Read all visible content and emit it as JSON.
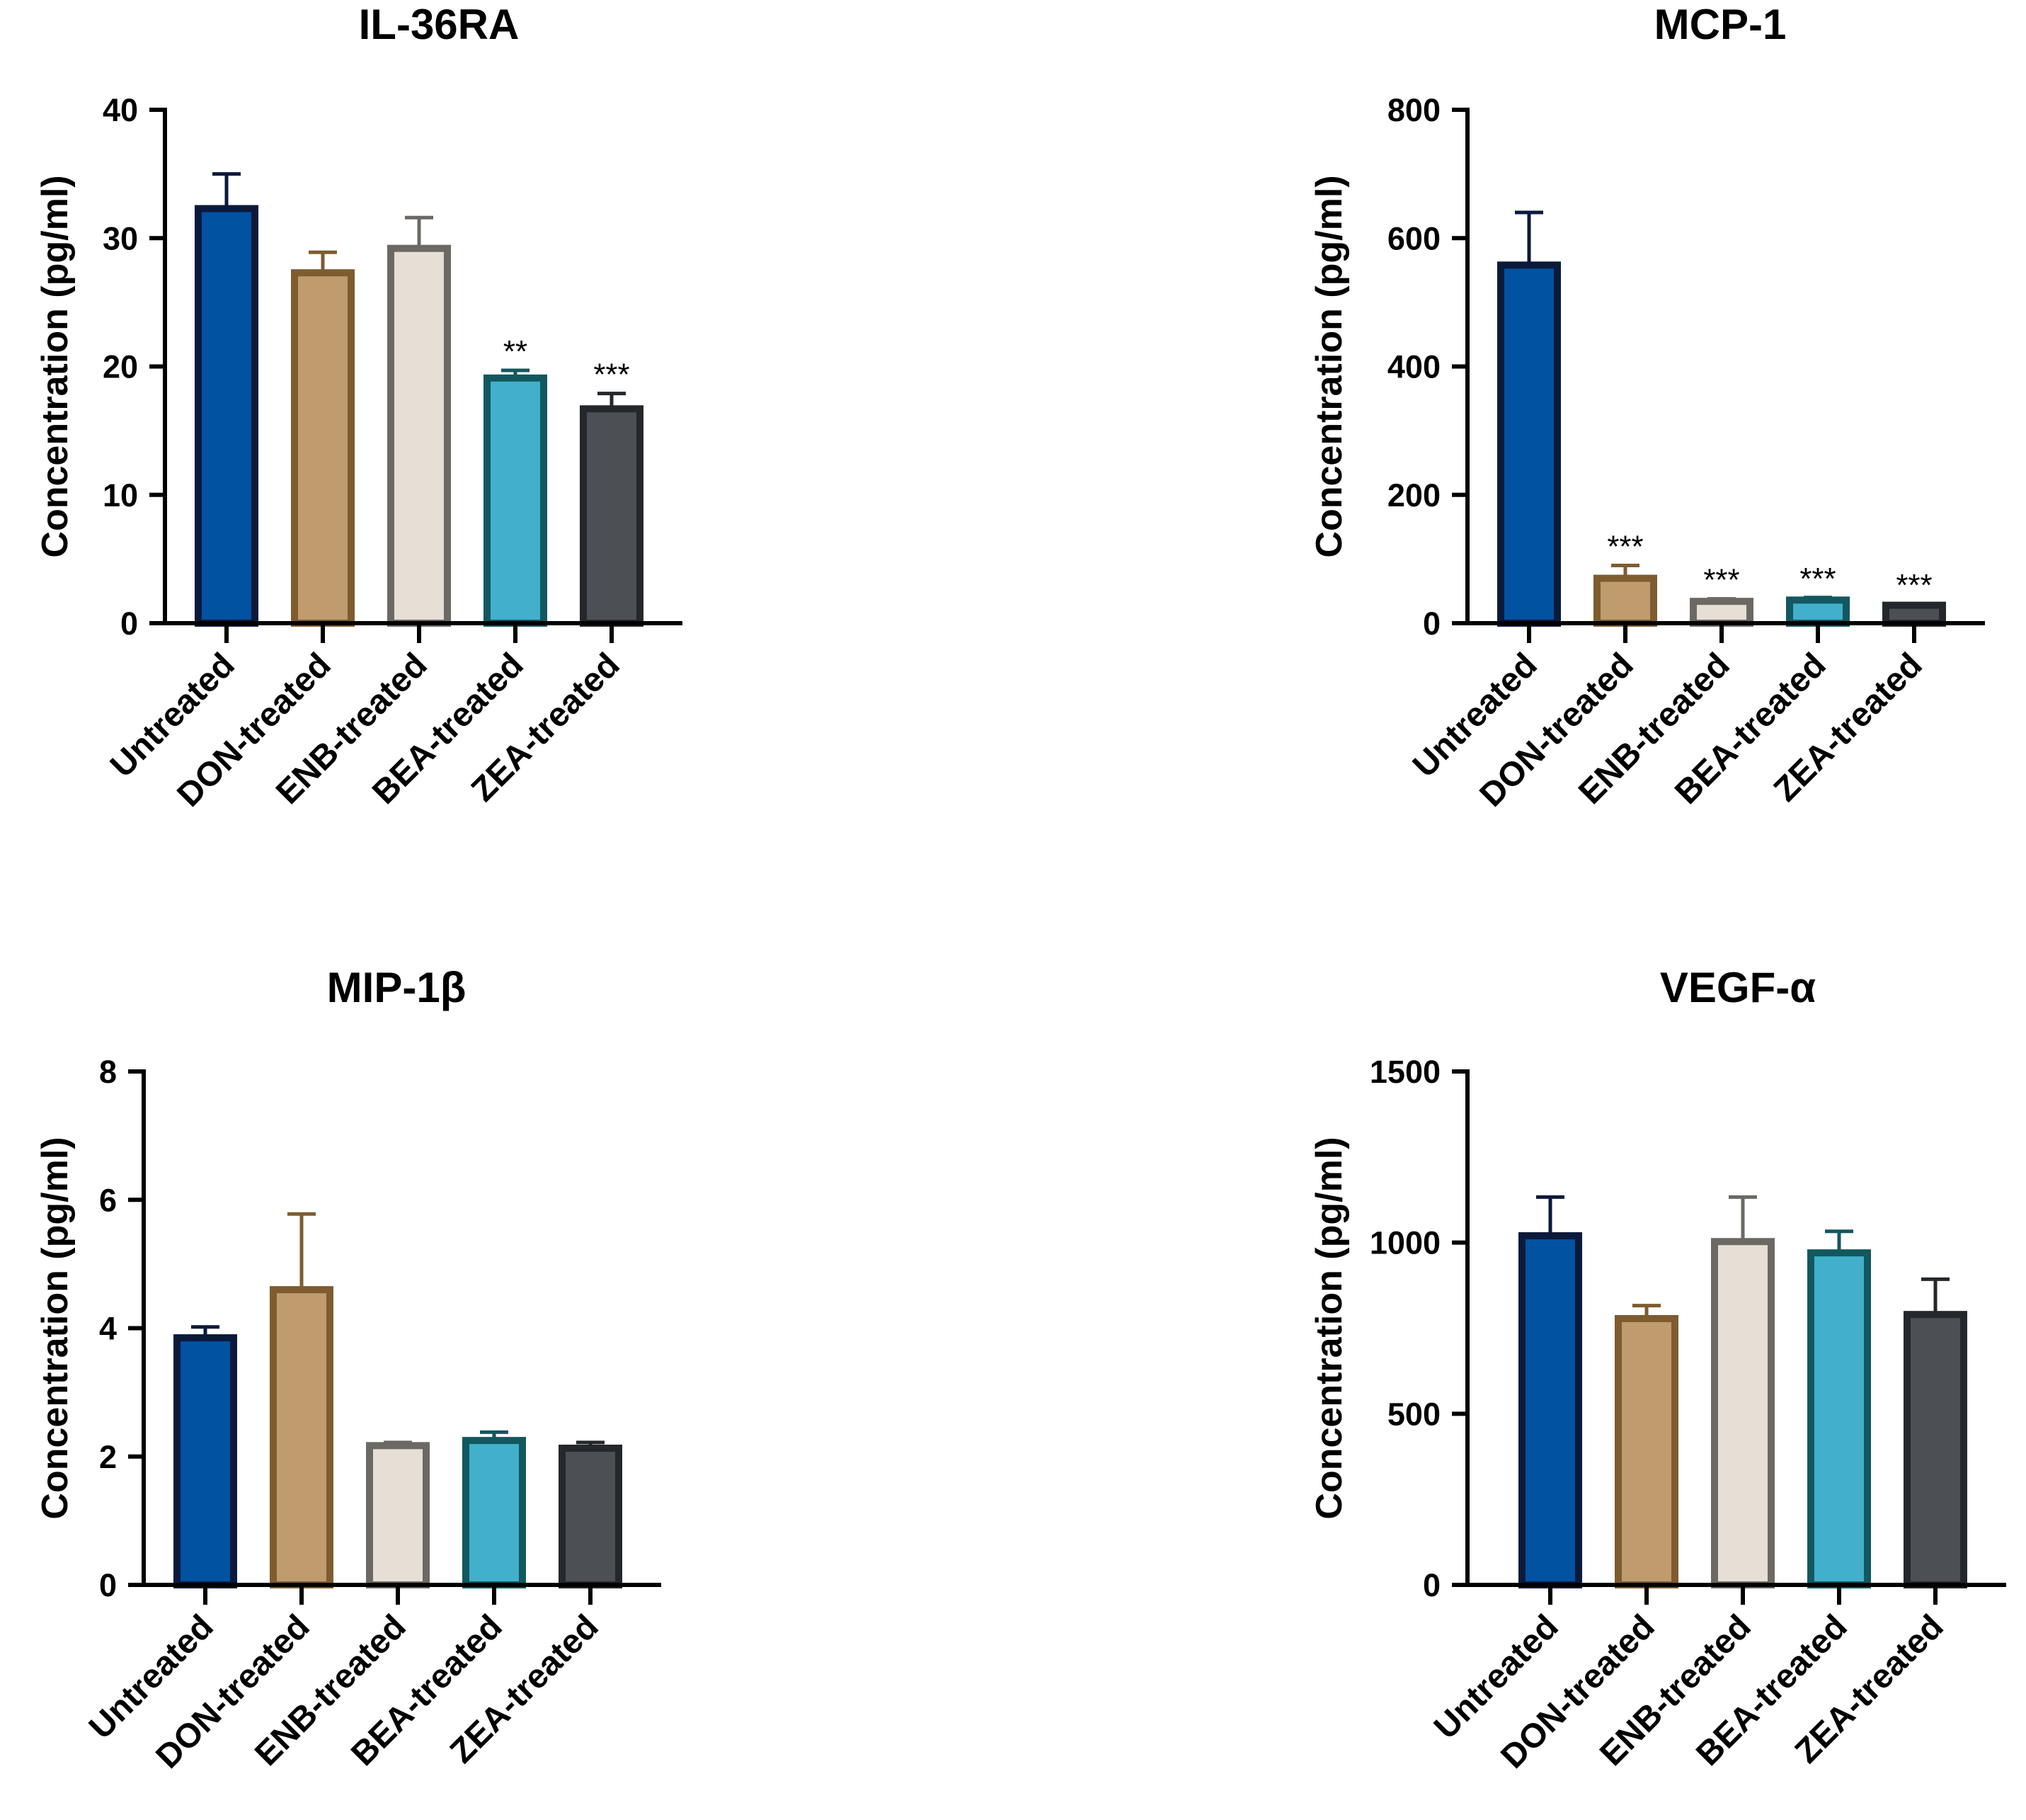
{
  "chart_data": [
    {
      "type": "bar",
      "title": "IL-36RA",
      "xlabel": "",
      "ylabel": "Concentration (pg/ml)",
      "ylim": [
        0,
        40
      ],
      "yticks": [
        "0",
        "10",
        "20",
        "30",
        "40"
      ],
      "categories": [
        "Untreated",
        "DON-treated",
        "ENB-treated",
        "BEA-treated",
        "ZEA-treated"
      ],
      "values": [
        32.3,
        27.3,
        29.2,
        19.1,
        16.7
      ],
      "errors": [
        2.7,
        1.6,
        2.4,
        0.6,
        1.2
      ],
      "significance": [
        "",
        "",
        "",
        "**",
        "***"
      ]
    },
    {
      "type": "bar",
      "title": "MCP-1",
      "xlabel": "",
      "ylabel": "Concentration (pg/ml)",
      "ylim": [
        0,
        800
      ],
      "yticks": [
        "0",
        "200",
        "400",
        "600",
        "800"
      ],
      "categories": [
        "Untreated",
        "DON-treated",
        "ENB-treated",
        "BEA-treated",
        "ZEA-treated"
      ],
      "values": [
        558,
        70,
        34,
        36,
        28
      ],
      "errors": [
        82,
        20,
        4,
        4,
        2
      ],
      "significance": [
        "",
        "***",
        "***",
        "***",
        "***"
      ]
    },
    {
      "type": "bar",
      "title": "MIP-1β",
      "xlabel": "",
      "ylabel": "Concentration (pg/ml)",
      "ylim": [
        0,
        8
      ],
      "yticks": [
        "0",
        "2",
        "4",
        "6",
        "8"
      ],
      "categories": [
        "Untreated",
        "DON-treated",
        "ENB-treated",
        "BEA-treated",
        "ZEA-treated"
      ],
      "values": [
        3.85,
        4.6,
        2.17,
        2.25,
        2.13
      ],
      "errors": [
        0.17,
        1.18,
        0.05,
        0.13,
        0.09
      ],
      "significance": [
        "",
        "",
        "",
        "",
        ""
      ]
    },
    {
      "type": "bar",
      "title": "VEGF-α",
      "xlabel": "",
      "ylabel": "Concentration (pg/ml)",
      "ylim": [
        0,
        1500
      ],
      "yticks": [
        "0",
        "500",
        "1000",
        "1500"
      ],
      "categories": [
        "Untreated",
        "DON-treated",
        "ENB-treated",
        "BEA-treated",
        "ZEA-treated"
      ],
      "values": [
        1020,
        778,
        1003,
        970,
        790
      ],
      "errors": [
        113,
        38,
        130,
        63,
        103
      ],
      "significance": [
        "",
        "",
        "",
        "",
        ""
      ]
    }
  ],
  "colors": {
    "fills": [
      "#0252a2",
      "#bf9b6e",
      "#e5dfd6",
      "#42b0cc",
      "#4c5055"
    ],
    "edges": [
      "#0b1a3b",
      "#7e5c30",
      "#6c6965",
      "#12585e",
      "#24272b"
    ],
    "axis": "#000000"
  }
}
